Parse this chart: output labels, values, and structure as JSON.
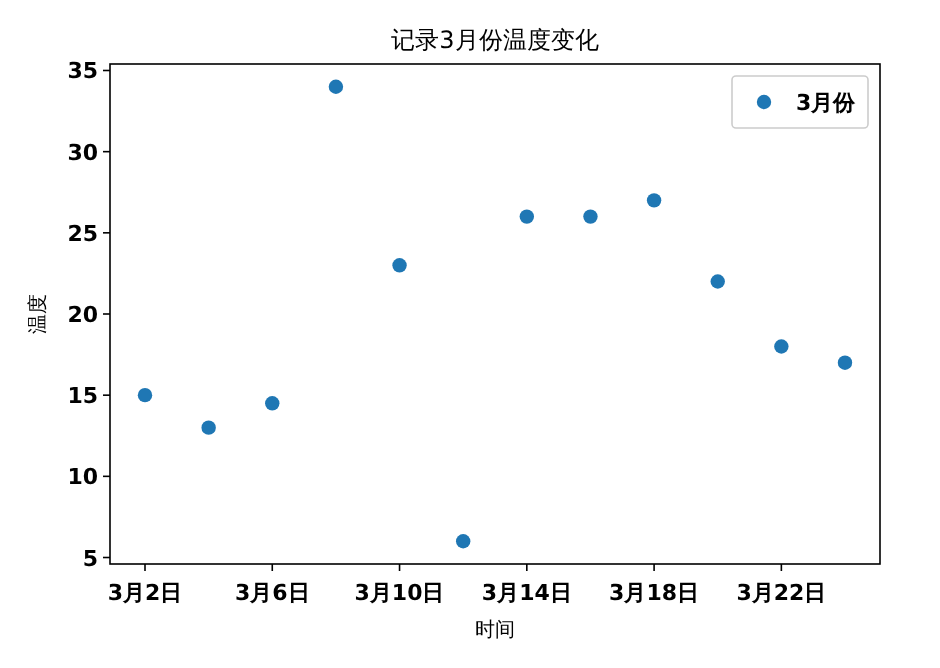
{
  "chart_data": {
    "type": "scatter",
    "title": "记录3月份温度变化",
    "xlabel": "时间",
    "ylabel": "温度",
    "categories": [
      "3月2日",
      null,
      "3月6日",
      null,
      "3月10日",
      null,
      "3月14日",
      null,
      "3月18日",
      null,
      "3月22日",
      null
    ],
    "series": [
      {
        "name": "3月份",
        "color": "#1f77b4",
        "values": [
          15,
          13,
          14.5,
          34,
          23,
          6,
          26,
          26,
          27,
          22,
          18,
          17
        ]
      }
    ],
    "ylim": [
      4.6,
      35.4
    ],
    "yticks": [
      5,
      10,
      15,
      20,
      25,
      30,
      35
    ],
    "marker": "circle",
    "legend": "top right",
    "grid": false
  }
}
